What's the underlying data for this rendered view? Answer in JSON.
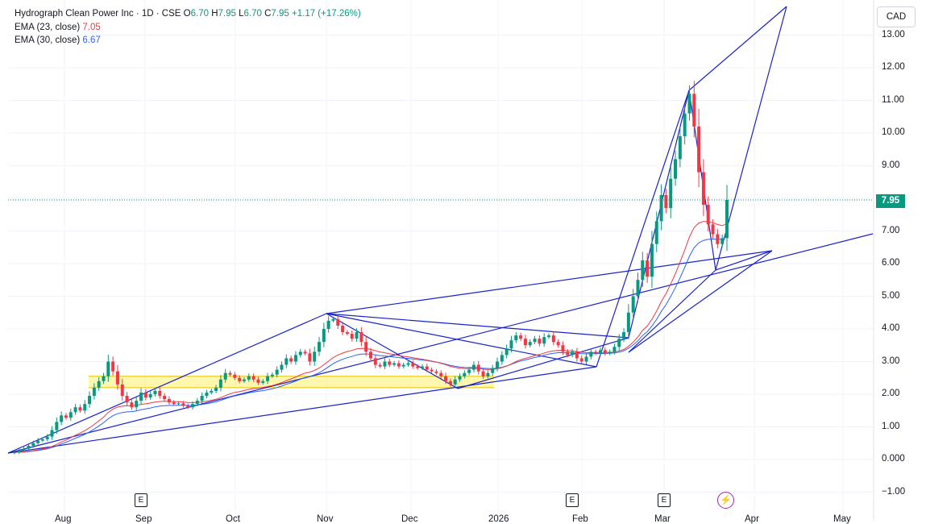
{
  "header": {
    "symbol_line": "Hydrograph Clean Power Inc · 1D · CSE",
    "o_label": "O",
    "o_value": "6.70",
    "h_label": "H",
    "h_value": "7.95",
    "l_label": "L",
    "l_value": "6.70",
    "c_label": "C",
    "c_value": "7.95",
    "change": "+1.17 (+17.26%)",
    "ema1_label": "EMA (23, close)",
    "ema1_value": "7.05",
    "ema2_label": "EMA (30, close)",
    "ema2_value": "6.67"
  },
  "currency": "CAD",
  "last_price_label": "7.95",
  "colors": {
    "up": "#089981",
    "down": "#f23645",
    "ema23": "#f23645",
    "ema30": "#2962ff",
    "pattern": "#1a23c8",
    "zone": "#fff176"
  },
  "chart_data": {
    "type": "candlestick",
    "y_ticks": [
      "13.00",
      "12.00",
      "11.00",
      "10.00",
      "9.00",
      "8.00",
      "7.00",
      "6.00",
      "5.00",
      "4.00",
      "3.00",
      "2.00",
      "1.00",
      "0.000",
      "−1.00"
    ],
    "ylim": [
      -1.3,
      13.6
    ],
    "x_months": [
      "Aug",
      "Sep",
      "Oct",
      "Nov",
      "Dec",
      "2026",
      "Feb",
      "Mar",
      "Apr",
      "May"
    ],
    "events": [
      "E",
      "E",
      "E",
      "flash"
    ],
    "last_price": 7.95,
    "candles": [
      {
        "c": 0.22
      },
      {
        "c": 0.27
      },
      {
        "c": 0.33
      },
      {
        "c": 0.42
      },
      {
        "c": 0.5
      },
      {
        "c": 0.58
      },
      {
        "c": 0.62
      },
      {
        "c": 0.7
      },
      {
        "c": 0.9
      },
      {
        "c": 1.15
      },
      {
        "c": 1.35
      },
      {
        "c": 1.28
      },
      {
        "c": 1.45
      },
      {
        "c": 1.6
      },
      {
        "c": 1.5
      },
      {
        "c": 1.7
      },
      {
        "c": 1.95
      },
      {
        "c": 2.2
      },
      {
        "c": 2.4
      },
      {
        "c": 2.55
      },
      {
        "c": 3.0
      },
      {
        "c": 2.7
      },
      {
        "c": 2.3
      },
      {
        "c": 1.95
      },
      {
        "c": 1.75
      },
      {
        "c": 1.6
      },
      {
        "c": 1.8
      },
      {
        "c": 2.05
      },
      {
        "c": 1.9
      },
      {
        "c": 2.0
      },
      {
        "c": 2.1
      },
      {
        "c": 1.95
      },
      {
        "c": 1.85
      },
      {
        "c": 1.75
      },
      {
        "c": 1.7
      },
      {
        "c": 1.72
      },
      {
        "c": 1.65
      },
      {
        "c": 1.6
      },
      {
        "c": 1.7
      },
      {
        "c": 1.8
      },
      {
        "c": 1.95
      },
      {
        "c": 2.05
      },
      {
        "c": 2.1
      },
      {
        "c": 2.2
      },
      {
        "c": 2.45
      },
      {
        "c": 2.65
      },
      {
        "c": 2.6
      },
      {
        "c": 2.5
      },
      {
        "c": 2.4
      },
      {
        "c": 2.45
      },
      {
        "c": 2.55
      },
      {
        "c": 2.45
      },
      {
        "c": 2.35
      },
      {
        "c": 2.4
      },
      {
        "c": 2.55
      },
      {
        "c": 2.6
      },
      {
        "c": 2.75
      },
      {
        "c": 2.9
      },
      {
        "c": 3.1
      },
      {
        "c": 3.0
      },
      {
        "c": 3.2
      },
      {
        "c": 3.3
      },
      {
        "c": 3.25
      },
      {
        "c": 3.0
      },
      {
        "c": 3.3
      },
      {
        "c": 3.6
      },
      {
        "c": 4.0
      },
      {
        "c": 4.25
      },
      {
        "c": 4.3
      },
      {
        "c": 4.1
      },
      {
        "c": 3.9
      },
      {
        "c": 3.85
      },
      {
        "c": 3.7
      },
      {
        "c": 3.9
      },
      {
        "c": 3.6
      },
      {
        "c": 3.3
      },
      {
        "c": 3.1
      },
      {
        "c": 2.9
      },
      {
        "c": 2.85
      },
      {
        "c": 3.0
      },
      {
        "c": 2.9
      },
      {
        "c": 2.95
      },
      {
        "c": 2.85
      },
      {
        "c": 2.9
      },
      {
        "c": 2.95
      },
      {
        "c": 2.85
      },
      {
        "c": 2.8
      },
      {
        "c": 2.85
      },
      {
        "c": 2.75
      },
      {
        "c": 2.7
      },
      {
        "c": 2.65
      },
      {
        "c": 2.55
      },
      {
        "c": 2.4
      },
      {
        "c": 2.3
      },
      {
        "c": 2.45
      },
      {
        "c": 2.55
      },
      {
        "c": 2.65
      },
      {
        "c": 2.75
      },
      {
        "c": 2.9
      },
      {
        "c": 2.7
      },
      {
        "c": 2.55
      },
      {
        "c": 2.65
      },
      {
        "c": 2.8
      },
      {
        "c": 3.0
      },
      {
        "c": 3.2
      },
      {
        "c": 3.4
      },
      {
        "c": 3.65
      },
      {
        "c": 3.8
      },
      {
        "c": 3.7
      },
      {
        "c": 3.5
      },
      {
        "c": 3.6
      },
      {
        "c": 3.7
      },
      {
        "c": 3.55
      },
      {
        "c": 3.75
      },
      {
        "c": 3.8
      },
      {
        "c": 3.6
      },
      {
        "c": 3.5
      },
      {
        "c": 3.3
      },
      {
        "c": 3.2
      },
      {
        "c": 3.3
      },
      {
        "c": 3.1
      },
      {
        "c": 3.0
      },
      {
        "c": 3.15
      },
      {
        "c": 3.3
      },
      {
        "c": 3.25
      },
      {
        "c": 3.35
      },
      {
        "c": 3.25
      },
      {
        "c": 3.3
      },
      {
        "c": 3.45
      },
      {
        "c": 3.7
      },
      {
        "c": 3.9
      },
      {
        "c": 4.5
      },
      {
        "c": 5.0
      },
      {
        "c": 5.5
      },
      {
        "c": 6.1
      },
      {
        "c": 5.6
      },
      {
        "c": 6.6
      },
      {
        "c": 7.3
      },
      {
        "c": 8.1
      },
      {
        "c": 7.7
      },
      {
        "c": 8.6
      },
      {
        "c": 9.2
      },
      {
        "c": 9.9
      },
      {
        "c": 10.6
      },
      {
        "c": 11.2
      },
      {
        "c": 10.2
      },
      {
        "c": 8.8
      },
      {
        "c": 7.8
      },
      {
        "c": 7.2
      },
      {
        "c": 6.9
      },
      {
        "c": 6.6
      },
      {
        "c": 6.78
      },
      {
        "c": 7.95
      }
    ]
  }
}
